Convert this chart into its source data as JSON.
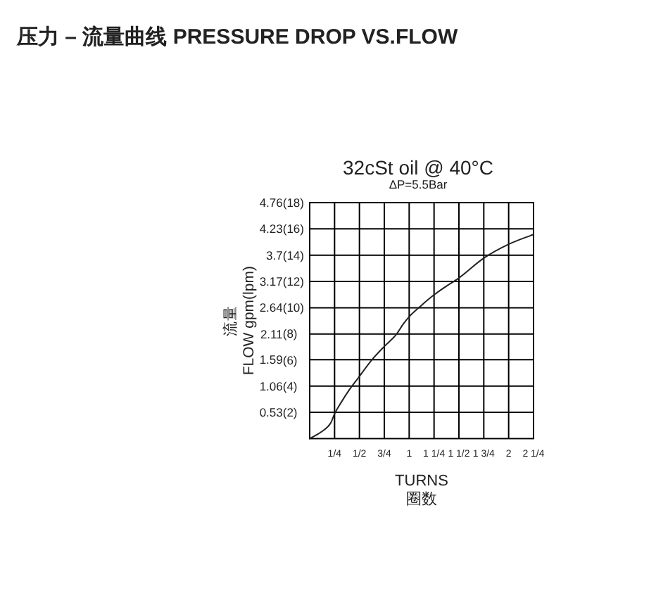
{
  "chart_data": {
    "type": "line",
    "title": "压力 – 流量曲线 PRESSURE DROP VS.FLOW",
    "subtitle": "32cSt oil @ 40°C",
    "annotations": [
      "ΔP=5.5Bar"
    ],
    "xlabel": "TURNS\n圈数",
    "ylabel": "流量\nFLOW gpm(lpm)",
    "x": [
      0,
      0.12,
      0.21,
      0.25,
      0.31,
      0.4,
      0.49,
      0.63,
      0.75,
      0.87,
      0.94,
      1.0,
      1.13,
      1.25,
      1.37,
      1.5,
      1.75,
      2.0,
      2.25
    ],
    "series": [
      {
        "color": "#222222",
        "values": [
          0,
          0.14,
          0.31,
          0.5,
          0.71,
          0.99,
          1.23,
          1.6,
          1.86,
          2.1,
          2.31,
          2.46,
          2.7,
          2.9,
          3.07,
          3.24,
          3.64,
          3.92,
          4.12
        ]
      }
    ],
    "xlim": [
      0,
      2.25
    ],
    "xticks": [
      {
        "value": 0.25,
        "label": "1/4"
      },
      {
        "value": 0.5,
        "label": "1/2"
      },
      {
        "value": 0.75,
        "label": "3/4"
      },
      {
        "value": 1,
        "label": "1"
      },
      {
        "value": 1.25,
        "label": "1 1/4"
      },
      {
        "value": 1.5,
        "label": "1 1/2"
      },
      {
        "value": 1.75,
        "label": "1 3/4"
      },
      {
        "value": 2,
        "label": "2"
      },
      {
        "value": 2.25,
        "label": "2 1/4"
      }
    ],
    "ylim": [
      0,
      4.76
    ],
    "yticks": [
      0.53,
      1.06,
      1.59,
      2.11,
      2.64,
      3.17,
      3.7,
      4.23,
      4.76
    ],
    "y2lim": [
      0,
      18
    ],
    "y2ticks": [
      {
        "value": 2,
        "label": "(2)"
      },
      {
        "value": 4,
        "label": "(4)"
      },
      {
        "value": 6,
        "label": "(6)"
      },
      {
        "value": 8,
        "label": "(8)"
      },
      {
        "value": 10,
        "label": "(10)"
      },
      {
        "value": 12,
        "label": "(12)"
      },
      {
        "value": 14,
        "label": "(14)"
      },
      {
        "value": 16,
        "label": "(16)"
      },
      {
        "value": 18,
        "label": "(18)"
      }
    ],
    "grid": true
  }
}
